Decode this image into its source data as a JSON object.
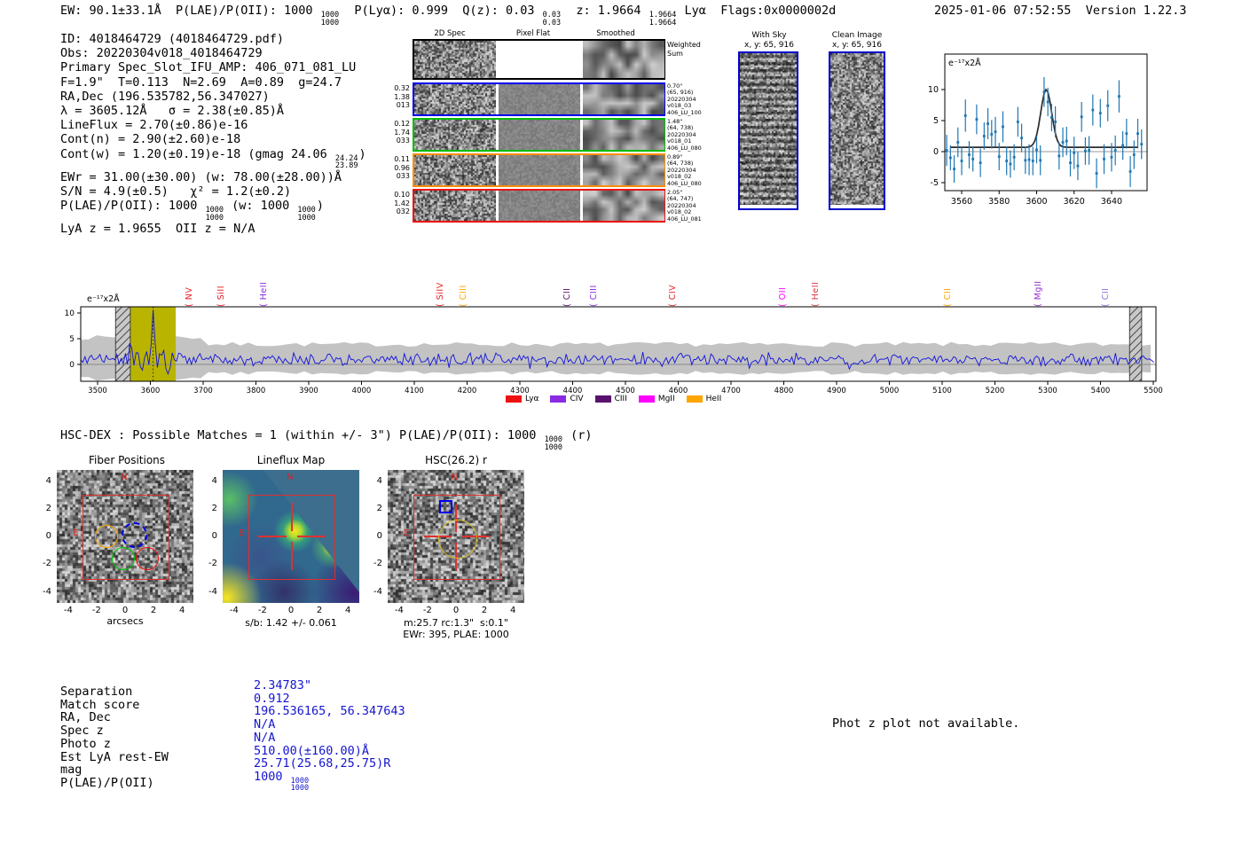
{
  "app": {
    "datetime": "2025-01-06 07:52:55",
    "version": "Version 1.22.3"
  },
  "header": {
    "segments": [
      "EW: 90.1±33.1Å  P(LAE)/P(OII): 1000 ",
      {
        "frac": [
          "1000",
          "1000"
        ]
      },
      "  P(Lyα): 0.999  Q(z): 0.03 ",
      {
        "frac": [
          "0.03",
          "0.03"
        ]
      },
      "  z: 1.9664 ",
      {
        "frac": [
          "1.9664",
          "1.9664"
        ]
      },
      " Lyα  Flags:0x0000002d"
    ]
  },
  "info_lines": [
    [
      "ID: 4018464729 (4018464729.pdf)"
    ],
    [
      "Obs: 20220304v018_4018464729"
    ],
    [
      "Primary Spec_Slot_IFU_AMP: 406_071_081_LU"
    ],
    [
      "F=1.9\"  T=0.113  N=2.69  A=0.89  g=24.7"
    ],
    [
      "RA,Dec (196.535782,56.347027)"
    ],
    [
      "λ = 3605.12Å   σ = 2.38(±0.85)Å"
    ],
    [
      "LineFlux = 2.70(±0.86)e-16"
    ],
    [
      "Cont(n) = 2.90(±2.60)e-18"
    ],
    [
      "Cont(w) = 1.20(±0.19)e-18 (gmag 24.06 ",
      {
        "frac": [
          "24.24",
          "23.89"
        ]
      },
      ")"
    ],
    [
      "EWr = 31.00(±30.00) (w: 78.00(±28.00))Å"
    ],
    [
      "S/N = 4.9(±0.5)   χ² = 1.2(±0.2)"
    ],
    [
      "P(LAE)/P(OII): 1000 ",
      {
        "frac": [
          "1000",
          "1000"
        ]
      },
      " (w: 1000 ",
      {
        "frac": [
          "1000",
          "1000"
        ]
      },
      ")"
    ],
    [
      "LyA z = 1.9655  OII z = N/A"
    ]
  ],
  "spec2d": {
    "col_headers": [
      "2D Spec",
      "Pixel Flat",
      "Smoothed"
    ],
    "weighted_sum": [
      "Weighted",
      "Sum"
    ],
    "rows": [
      {
        "color": "#0000ee",
        "left": [
          "0.32",
          "1.38",
          "013"
        ],
        "right": [
          "0.70\"",
          "(65, 916)",
          "20220304",
          "v018_03",
          "406_LU_100"
        ]
      },
      {
        "color": "#00bb00",
        "left": [
          "0.12",
          "1.74",
          "033"
        ],
        "right": [
          "1.48\"",
          "(64, 738)",
          "20220304",
          "v018_01",
          "406_LU_080"
        ]
      },
      {
        "color": "#ff8c00",
        "left": [
          "0.11",
          "0.96",
          "033"
        ],
        "right": [
          "0.89\"",
          "(64, 738)",
          "20220304",
          "v018_02",
          "406_LU_080"
        ]
      },
      {
        "color": "#ee1111",
        "left": [
          "0.10",
          "1.42",
          "032"
        ],
        "right": [
          "2.05\"",
          "(64, 747)",
          "20220304",
          "v018_02",
          "406_LU_081"
        ]
      }
    ]
  },
  "ccd_cutouts": {
    "with_sky": {
      "title": "With Sky",
      "subtitle": "x, y: 65, 916"
    },
    "clean": {
      "title": "Clean Image",
      "subtitle": "x, y: 65, 916"
    }
  },
  "chart_data": [
    {
      "id": "line_fit_plot",
      "type": "scatter",
      "units_label": "e⁻¹⁷x2Å",
      "x_ticks": [
        3560,
        3580,
        3600,
        3620,
        3640
      ],
      "y_ticks": [
        -5,
        0,
        5,
        10
      ],
      "x_range": [
        3551,
        3658
      ],
      "y_range": [
        -8,
        13
      ],
      "fit": {
        "center": 3605.12,
        "sigma": 2.9,
        "height": 9.3,
        "baseline": 0.7
      },
      "marker_color": "#1f77b4",
      "fit_color": "#2a2a2a",
      "points": [
        [
          3552,
          0.2,
          2.5
        ],
        [
          3554,
          -1.0,
          2.0
        ],
        [
          3556,
          -2.8,
          2.2
        ],
        [
          3558,
          1.5,
          2.4
        ],
        [
          3560,
          -1.5,
          2.3
        ],
        [
          3562,
          5.8,
          2.6
        ],
        [
          3564,
          -0.5,
          2.2
        ],
        [
          3566,
          -1.2,
          2.0
        ],
        [
          3568,
          5.2,
          2.4
        ],
        [
          3570,
          -1.8,
          2.3
        ],
        [
          3572,
          2.5,
          2.2
        ],
        [
          3574,
          4.5,
          2.5
        ],
        [
          3576,
          2.8,
          2.3
        ],
        [
          3578,
          3.2,
          2.4
        ],
        [
          3580,
          -0.8,
          2.2
        ],
        [
          3582,
          4.0,
          2.5
        ],
        [
          3584,
          -1.5,
          2.3
        ],
        [
          3586,
          -2.0,
          2.2
        ],
        [
          3588,
          -0.9,
          2.1
        ],
        [
          3590,
          4.8,
          2.4
        ],
        [
          3592,
          2.2,
          2.3
        ],
        [
          3594,
          -1.4,
          2.2
        ],
        [
          3596,
          -1.3,
          2.5
        ],
        [
          3598,
          -1.5,
          2.3
        ],
        [
          3600,
          0.3,
          2.2
        ],
        [
          3602,
          -1.4,
          2.4
        ],
        [
          3604,
          9.6,
          2.4
        ],
        [
          3606,
          8.0,
          2.3
        ],
        [
          3608,
          5.5,
          2.2
        ],
        [
          3610,
          4.8,
          2.5
        ],
        [
          3612,
          -0.7,
          2.2
        ],
        [
          3614,
          1.5,
          2.4
        ],
        [
          3616,
          1.7,
          2.3
        ],
        [
          3618,
          -1.8,
          2.2
        ],
        [
          3620,
          -0.2,
          2.6
        ],
        [
          3622,
          -2.3,
          2.3
        ],
        [
          3624,
          5.6,
          2.4
        ],
        [
          3626,
          0.1,
          2.2
        ],
        [
          3628,
          0.2,
          2.3
        ],
        [
          3630,
          6.7,
          2.5
        ],
        [
          3632,
          -3.5,
          2.4
        ],
        [
          3634,
          6.2,
          2.3
        ],
        [
          3636,
          -1.2,
          2.4
        ],
        [
          3638,
          7.4,
          2.5
        ],
        [
          3640,
          -0.9,
          2.3
        ],
        [
          3642,
          0.2,
          2.4
        ],
        [
          3644,
          8.9,
          2.6
        ],
        [
          3646,
          1.0,
          2.3
        ],
        [
          3648,
          2.9,
          2.4
        ],
        [
          3650,
          -3.2,
          2.5
        ],
        [
          3652,
          -0.5,
          2.3
        ],
        [
          3654,
          2.9,
          2.4
        ],
        [
          3656,
          1.2,
          2.4
        ]
      ]
    },
    {
      "id": "full_spectrum",
      "type": "line",
      "units_label": "e⁻¹⁷x2Å",
      "x_ticks": [
        3500,
        3600,
        3700,
        3800,
        3900,
        4000,
        4100,
        4200,
        4300,
        4400,
        4500,
        4600,
        4700,
        4800,
        4900,
        5000,
        5100,
        5200,
        5300,
        5400,
        5500
      ],
      "y_ticks": [
        0,
        5,
        10
      ],
      "x_range": [
        3468,
        5505
      ],
      "line_color": "#1212dd",
      "error_band_color": "#c3c3c3",
      "highlight_band": {
        "range": [
          3562,
          3648
        ],
        "color": "#b9b400"
      },
      "masked_bands": [
        [
          3534,
          3562
        ],
        [
          5455,
          5478
        ]
      ],
      "line_marker": 3605.12,
      "noise_profile": {
        "seed": 7,
        "baseline": 0.9,
        "amplitude": 2.1,
        "peak_amplitude": 4.9
      },
      "emission_lines": [
        {
          "name": "NV",
          "wave": 3677,
          "color": "#e82020"
        },
        {
          "name": "SiII",
          "wave": 3737,
          "color": "#e82020"
        },
        {
          "name": "HeII",
          "wave": 3818,
          "color": "#8a2be2"
        },
        {
          "name": "SiIV",
          "wave": 4152,
          "color": "#e82020"
        },
        {
          "name": "CIII",
          "wave": 4196,
          "color": "#ffa500"
        },
        {
          "name": "CII",
          "wave": 4392,
          "color": "#59116e"
        },
        {
          "name": "CIII",
          "wave": 4443,
          "color": "#8a2be2"
        },
        {
          "name": "CIV",
          "wave": 4593,
          "color": "#e82020"
        },
        {
          "name": "OII",
          "wave": 4800,
          "color": "#ff00ff"
        },
        {
          "name": "HeII",
          "wave": 4863,
          "color": "#dc3545"
        },
        {
          "name": "CII",
          "wave": 5113,
          "color": "#ffa500"
        },
        {
          "name": "MgII",
          "wave": 5285,
          "color": "#9932cc"
        },
        {
          "name": "CII",
          "wave": 5413,
          "color": "#9370db"
        }
      ],
      "legend": [
        {
          "label": "Lyα",
          "color": "#ee1111"
        },
        {
          "label": "CIV",
          "color": "#8a2be2"
        },
        {
          "label": "CIII",
          "color": "#59116e"
        },
        {
          "label": "MgII",
          "color": "#ff00ff"
        },
        {
          "label": "HeII",
          "color": "#ffa500"
        }
      ]
    }
  ],
  "hsc_line": {
    "segments": [
      "HSC-DEX : Possible Matches = 1 (within +/- 3\")  P(LAE)/P(OII): 1000 ",
      {
        "frac": [
          "1000",
          "1000"
        ]
      },
      " (r)"
    ]
  },
  "panels": {
    "ticks": [
      -4,
      -2,
      0,
      2,
      4
    ],
    "fiber": {
      "title": "Fiber Positions",
      "xlabel": "arcsecs"
    },
    "lineflux": {
      "title": "Lineflux Map",
      "caption": "s/b: 1.42 +/- 0.061"
    },
    "hsc": {
      "title": "HSC(26.2) r",
      "caption1": "m:25.7 rc:1.3\"  s:0.1\"",
      "caption2": "EWr: 395, PLAE: 1000"
    },
    "compass_n": "N",
    "compass_e": "E"
  },
  "match_table": {
    "rows": [
      {
        "label": "Separation",
        "value": [
          "2.34783\""
        ]
      },
      {
        "label": "Match score",
        "value": [
          "0.912"
        ]
      },
      {
        "label": "RA, Dec",
        "value": [
          "196.536165, 56.347643"
        ]
      },
      {
        "label": "Spec z",
        "value": [
          "N/A"
        ]
      },
      {
        "label": "Photo z",
        "value": [
          "N/A"
        ]
      },
      {
        "label": "Est LyA rest-EW",
        "value": [
          "510.00(±160.00)Å"
        ]
      },
      {
        "label": "mag",
        "value": [
          "25.71(25.68,25.75)R"
        ]
      },
      {
        "label": "P(LAE)/P(OII)",
        "value": [
          "1000 ",
          {
            "frac": [
              "1000",
              "1000"
            ]
          }
        ]
      }
    ]
  },
  "photz_note": "Phot z plot not available."
}
